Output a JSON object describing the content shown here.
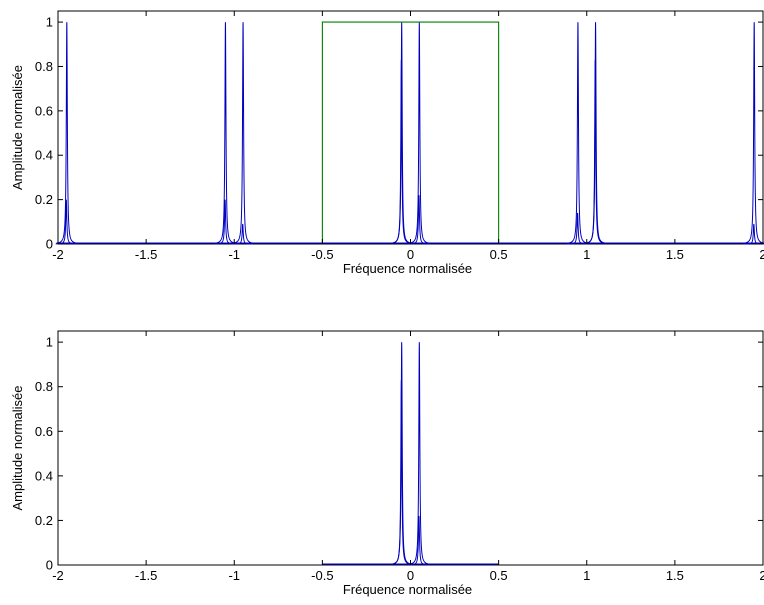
{
  "chart_data": [
    {
      "type": "line",
      "title": "",
      "xlabel": "Fréquence normalisée",
      "ylabel": "Amplitude normalisée",
      "xlim": [
        -2,
        2
      ],
      "ylim": [
        0,
        1.05
      ],
      "xticks": [
        -2,
        -1.5,
        -1,
        -0.5,
        0,
        0.5,
        1,
        1.5,
        2
      ],
      "xtick_labels": [
        "-2",
        "-1.5",
        "-1",
        "-0.5",
        "0",
        "0.5",
        "1",
        "1.5",
        "2"
      ],
      "yticks": [
        0,
        0.2,
        0.4,
        0.6,
        0.8,
        1
      ],
      "ytick_labels": [
        "0",
        "0.2",
        "0.4",
        "0.6",
        "0.8",
        "1"
      ],
      "grid": false,
      "series": [
        {
          "color": "#0000bf",
          "style": "peaks",
          "peaks": [
            {
              "x": -1.95,
              "y": 1.0
            },
            {
              "x": -1.953,
              "y": 0.2
            },
            {
              "x": -1.05,
              "y": 1.0
            },
            {
              "x": -1.052,
              "y": 0.2
            },
            {
              "x": -0.95,
              "y": 1.0
            },
            {
              "x": -0.952,
              "y": 0.09
            },
            {
              "x": -0.05,
              "y": 1.0
            },
            {
              "x": -0.052,
              "y": 0.83
            },
            {
              "x": 0.05,
              "y": 1.0
            },
            {
              "x": 0.048,
              "y": 0.22
            },
            {
              "x": 0.95,
              "y": 1.0
            },
            {
              "x": 0.948,
              "y": 0.14
            },
            {
              "x": 1.05,
              "y": 1.0
            },
            {
              "x": 1.048,
              "y": 0.83
            },
            {
              "x": 1.95,
              "y": 1.0
            },
            {
              "x": 1.948,
              "y": 0.09
            }
          ]
        },
        {
          "color": "#007f00",
          "style": "rect",
          "x": [
            -0.5,
            -0.5,
            0.5,
            0.5
          ],
          "y": [
            0,
            1,
            1,
            0
          ]
        }
      ]
    },
    {
      "type": "line",
      "title": "",
      "xlabel": "Fréquence normalisée",
      "ylabel": "Amplitude normalisée",
      "xlim": [
        -2,
        2
      ],
      "ylim": [
        0,
        1.05
      ],
      "xticks": [
        -2,
        -1.5,
        -1,
        -0.5,
        0,
        0.5,
        1,
        1.5,
        2
      ],
      "xtick_labels": [
        "-2",
        "-1.5",
        "-1",
        "-0.5",
        "0",
        "0.5",
        "1",
        "1.5",
        "2"
      ],
      "yticks": [
        0,
        0.2,
        0.4,
        0.6,
        0.8,
        1
      ],
      "ytick_labels": [
        "0",
        "0.2",
        "0.4",
        "0.6",
        "0.8",
        "1"
      ],
      "grid": false,
      "series": [
        {
          "color": "#0000bf",
          "style": "peaks",
          "x_range": [
            -0.5,
            0.5
          ],
          "peaks": [
            {
              "x": -0.05,
              "y": 1.0
            },
            {
              "x": -0.052,
              "y": 0.83
            },
            {
              "x": 0.05,
              "y": 1.0
            },
            {
              "x": 0.048,
              "y": 0.22
            }
          ]
        }
      ]
    }
  ]
}
